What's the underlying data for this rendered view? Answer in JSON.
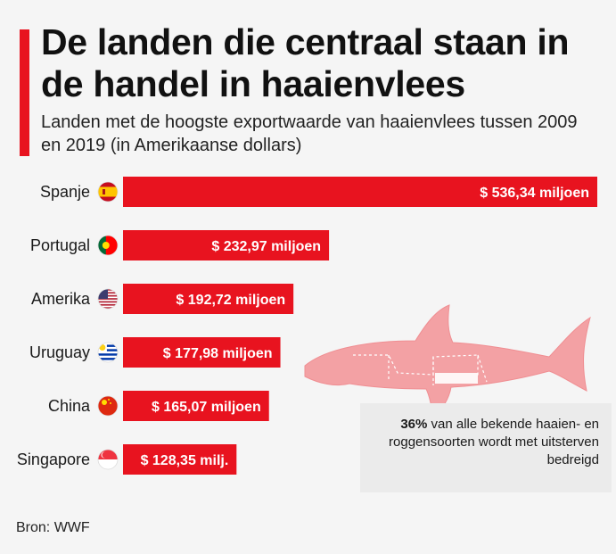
{
  "title": "De landen die centraal staan in de handel in haaienvlees",
  "subtitle": "Landen met de hoogste exportwaarde van haaienvlees tussen 2009 en 2019 (in Amerikaanse dollars)",
  "note": {
    "highlight": "36%",
    "text": "van alle bekende haaien- en roggensoorten wordt met uitsterven bedreigd"
  },
  "source": "Bron: WWF",
  "colors": {
    "bar": "#e8131f",
    "accent": "#e8131f",
    "shark": "#f3a1a4",
    "note_bg": "#ebebeb"
  },
  "chart_data": {
    "type": "bar",
    "orientation": "horizontal",
    "categories": [
      "Spanje",
      "Portugal",
      "Amerika",
      "Uruguay",
      "China",
      "Singapore"
    ],
    "values": [
      536.34,
      232.97,
      192.72,
      177.98,
      165.07,
      128.35
    ],
    "value_labels": [
      "$ 536,34 miljoen",
      "$ 232,97 miljoen",
      "$ 192,72 miljoen",
      "$ 177,98 miljoen",
      "$ 165,07 miljoen",
      "$ 128,35 milj."
    ],
    "flags": [
      "flag-spain-icon",
      "flag-portugal-icon",
      "flag-usa-icon",
      "flag-uruguay-icon",
      "flag-china-icon",
      "flag-singapore-icon"
    ],
    "unit": "miljoen USD",
    "grid": false,
    "legend": "none"
  }
}
